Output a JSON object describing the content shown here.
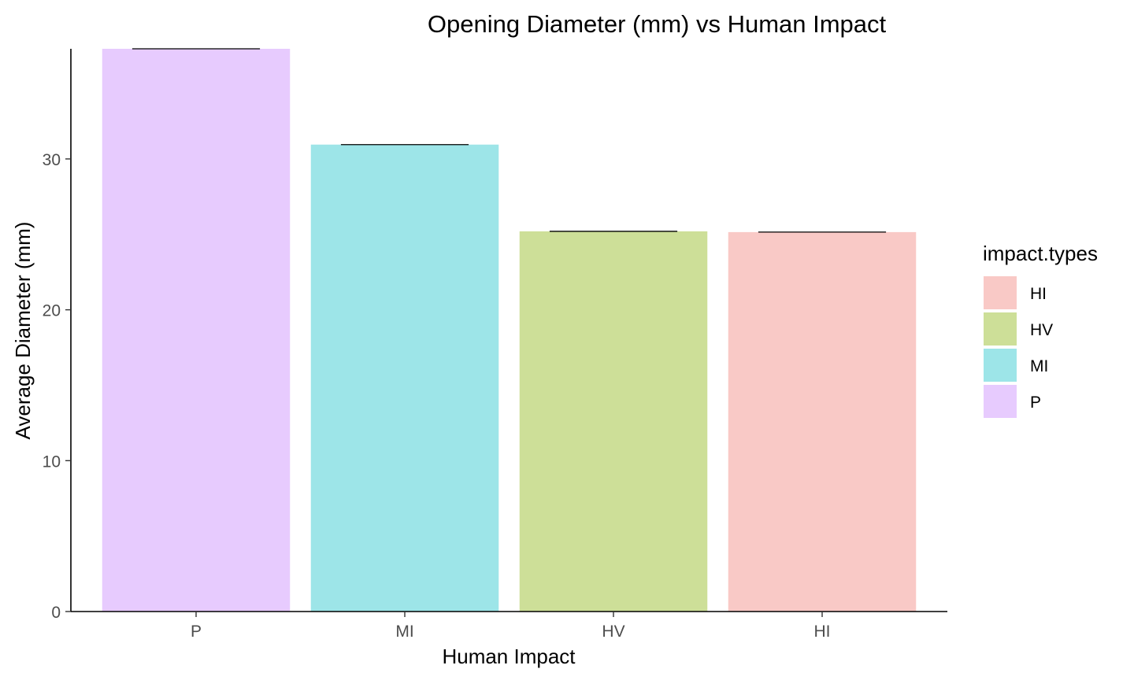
{
  "chart_data": {
    "type": "bar",
    "title": "Opening Diameter (mm) vs Human Impact",
    "xlabel": "Human Impact",
    "ylabel": "Average Diameter (mm)",
    "categories": [
      "P",
      "MI",
      "HV",
      "HI"
    ],
    "values": [
      37.3,
      30.95,
      25.2,
      25.15
    ],
    "ylim": [
      0,
      37.3
    ],
    "yticks": [
      0,
      10,
      20,
      30
    ],
    "ytick_labels": [
      "0",
      "10",
      "20",
      "30"
    ],
    "colors": {
      "P": "#e7cbfe",
      "MI": "#9de5e8",
      "HV": "#cddf98",
      "HI": "#f9c9c6"
    },
    "legend": {
      "title": "impact.types",
      "placement": "right",
      "items": [
        "HI",
        "HV",
        "MI",
        "P"
      ]
    },
    "grid": false,
    "error_bars": true
  }
}
